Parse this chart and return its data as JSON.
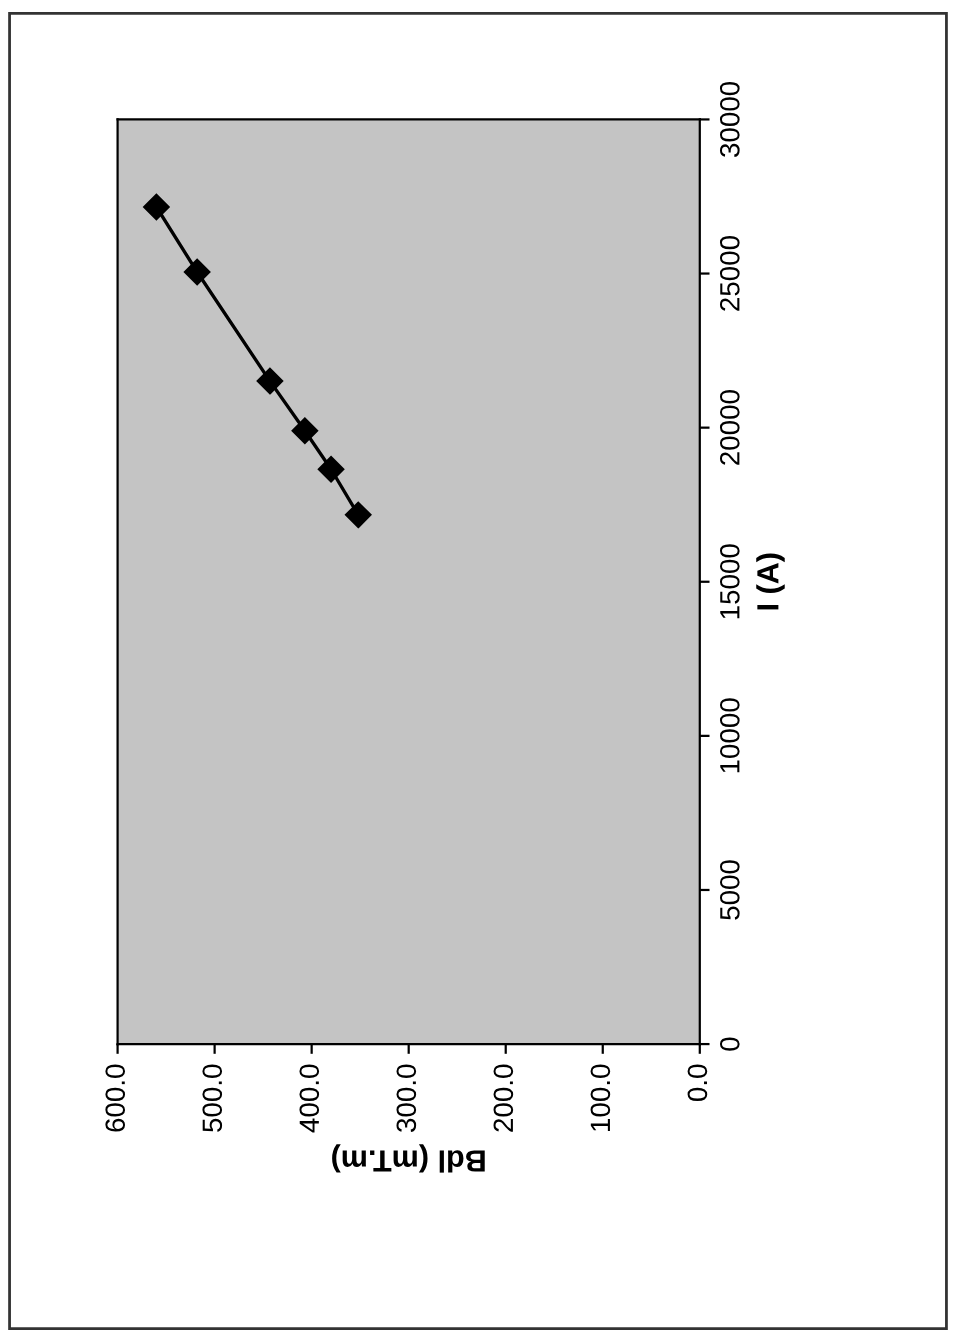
{
  "chart_data": {
    "type": "line",
    "xlabel": "Bdl (mT.m)",
    "ylabel": "I (A)",
    "x": [
      560,
      518,
      443,
      407,
      380,
      352
    ],
    "series": [
      {
        "color": "#000000",
        "values": [
          27160,
          25050,
          21510,
          19900,
          18650,
          17170
        ]
      }
    ],
    "ylim": [
      0,
      30000
    ],
    "yticks": [
      0,
      5000,
      10000,
      15000,
      20000,
      25000,
      30000
    ],
    "xlim": [
      600,
      0
    ],
    "xticks": [
      {
        "value": 600,
        "label": "600.0"
      },
      {
        "value": 500,
        "label": "500.0"
      },
      {
        "value": 400,
        "label": "400.0"
      },
      {
        "value": 300,
        "label": "300.0"
      },
      {
        "value": 200,
        "label": "200.0"
      },
      {
        "value": 100,
        "label": "100.0"
      },
      {
        "value": 0,
        "label": "0.0"
      }
    ],
    "marker": "diamond",
    "line_style": "solid",
    "grid": false,
    "legend": false
  }
}
